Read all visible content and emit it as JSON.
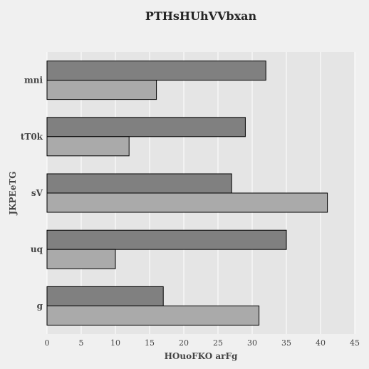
{
  "chart_data": {
    "type": "bar",
    "orientation": "horizontal",
    "title": "PTHsHUhVVbxan",
    "xlabel": "HOuoFKO arFg",
    "ylabel": "JKPEeTG",
    "categories": [
      "mni",
      "tT0k",
      "sV",
      "uq",
      "g"
    ],
    "series": [
      {
        "values": [
          32,
          29,
          27,
          35,
          17
        ],
        "color": "#808080"
      },
      {
        "values": [
          16,
          12,
          41,
          10,
          31
        ],
        "color": "#aaaaaa"
      }
    ],
    "xlim": [
      0,
      45
    ],
    "xticks": [
      "0",
      "5",
      "10",
      "15",
      "20",
      "25",
      "30",
      "35",
      "40",
      "45"
    ],
    "grid": true,
    "plot_background": "#e5e5e5",
    "bar_edge_color": "#000000"
  }
}
